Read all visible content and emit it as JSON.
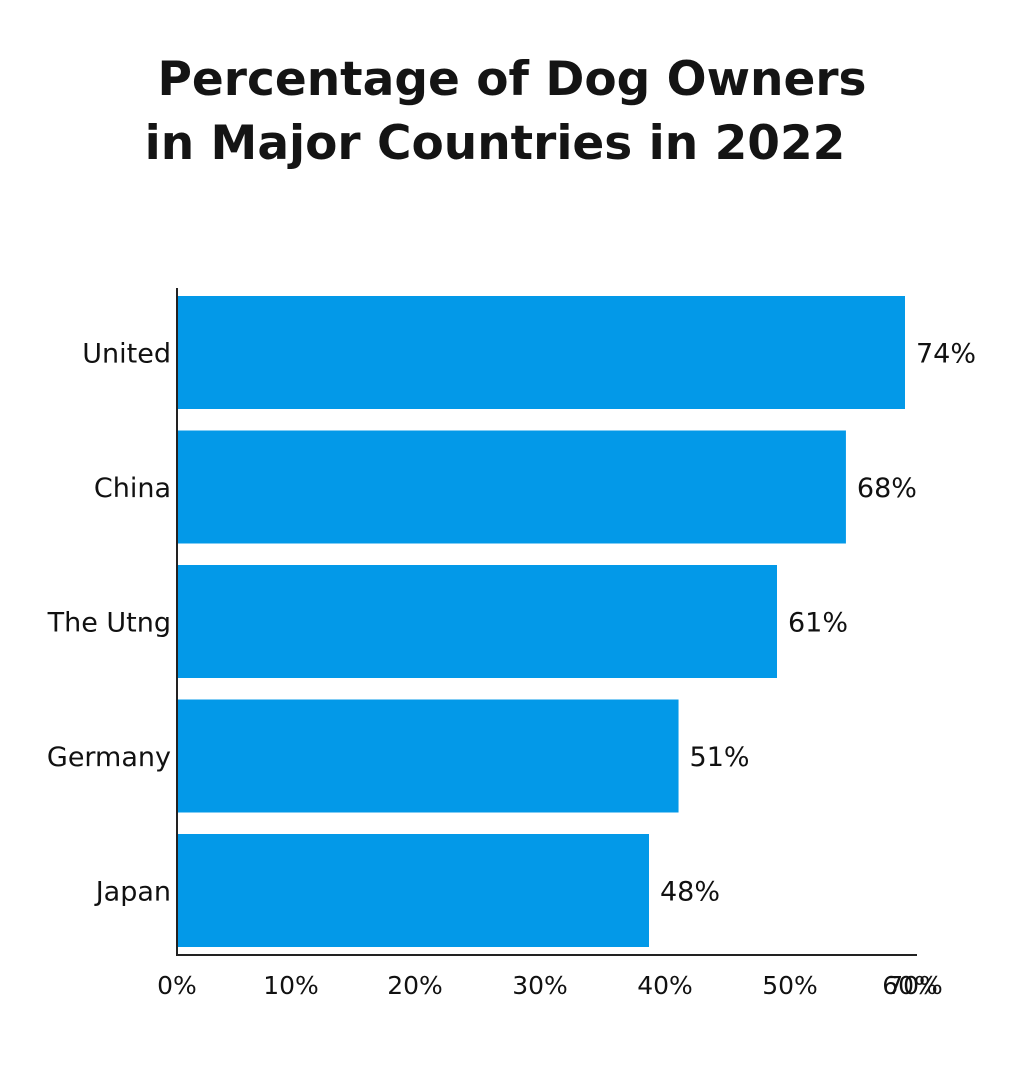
{
  "chart_data": {
    "type": "bar",
    "orientation": "horizontal",
    "title_lines": [
      "Percentage of Dog Owners",
      "in Major Countries in 2022"
    ],
    "categories": [
      "United",
      "China",
      "The Utng",
      "Germany",
      "Japan"
    ],
    "values": [
      74,
      68,
      61,
      51,
      48
    ],
    "value_labels": [
      "74%",
      "68%",
      "61%",
      "51%",
      "48%"
    ],
    "xlim": [
      0,
      70
    ],
    "ticks": [
      0,
      10,
      20,
      30,
      40,
      50,
      60,
      70
    ],
    "tick_labels": [
      "0%",
      "10%",
      "20%",
      "30%",
      "40%",
      "50%",
      "60%",
      "70%"
    ],
    "xlabel": "",
    "ylabel": "",
    "grid": false,
    "legend": "none",
    "bar_color": "#0399e8"
  }
}
